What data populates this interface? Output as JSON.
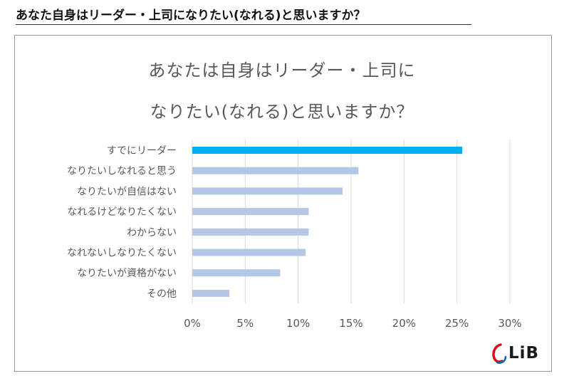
{
  "header": {
    "title": "あなた自身はリーダー・上司になりたい(なれる)と思いますか？"
  },
  "chart_data": {
    "type": "bar",
    "orientation": "horizontal",
    "title_lines": [
      "あなたは自身はリーダー・上司に",
      "なりたい(なれる)と思いますか？"
    ],
    "categories": [
      "すでにリーダー",
      "なりたいしなれると思う",
      "なりたいが自信はない",
      "なれるけどなりたくない",
      "わからない",
      "なれないしなりたくない",
      "なりたいが資格がない",
      "その他"
    ],
    "values": [
      25.5,
      15.7,
      14.2,
      11.0,
      11.0,
      10.7,
      8.3,
      3.5
    ],
    "highlight_index": 0,
    "xlim": [
      0,
      30
    ],
    "xticks": [
      0,
      5,
      10,
      15,
      20,
      25,
      30
    ],
    "xtick_labels": [
      "0%",
      "5%",
      "10%",
      "15%",
      "20%",
      "25%",
      "30%"
    ],
    "grid": true,
    "colors": {
      "highlight": "#00b0f0",
      "bar": "#b4c7e7",
      "grid": "#d9d9d9",
      "text": "#595959"
    }
  },
  "logo": {
    "text": "LiB",
    "mark_colors": [
      "#e60012",
      "#0068b7"
    ]
  }
}
